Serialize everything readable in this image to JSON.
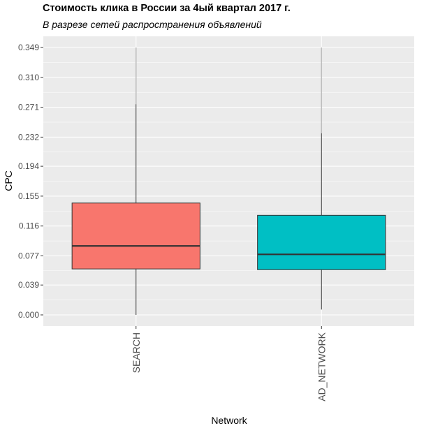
{
  "chart_data": {
    "type": "boxplot",
    "title": "Стоимость клика в России за 4ый квартал 2017 г.",
    "subtitle": "В разрезе сетей распространения объявлений",
    "xlabel": "Network",
    "ylabel": "CPC",
    "ylim": [
      0.0,
      0.349
    ],
    "ytick_labels": [
      "0.000",
      "0.039",
      "0.077",
      "0.116",
      "0.155",
      "0.194",
      "0.232",
      "0.271",
      "0.310",
      "0.349"
    ],
    "categories": [
      "SEARCH",
      "AD_NETWORK"
    ],
    "boxes": [
      {
        "category": "SEARCH",
        "whisker_low": 0.0,
        "q1": 0.06,
        "median": 0.09,
        "q3": 0.146,
        "whisker_high": 0.275,
        "outlier_max": 0.349,
        "fill": "#F8766D"
      },
      {
        "category": "AD_NETWORK",
        "whisker_low": 0.007,
        "q1": 0.059,
        "median": 0.079,
        "q3": 0.13,
        "whisker_high": 0.237,
        "outlier_max": 0.349,
        "fill": "#00BFC4"
      }
    ],
    "grid": true,
    "legend": "none",
    "colors": {
      "panel_background": "#EBEBEB",
      "gridline": "#FFFFFF",
      "box_outline": "#333333",
      "outlier_line": "#BEBEBE"
    }
  }
}
